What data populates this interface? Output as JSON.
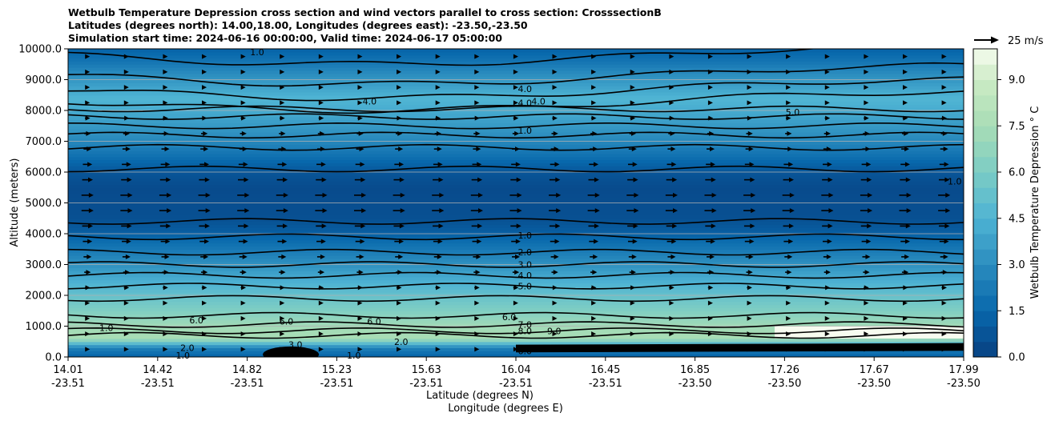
{
  "chart_data": {
    "type": "contour",
    "title_lines": [
      "Wetbulb Temperature Depression cross section and wind vectors parallel to cross section: CrosssectionB",
      "Latitudes (degrees north): 14.00,18.00, Longitudes (degrees east): -23.50,-23.50",
      "Simulation start time: 2024-06-16 00:00:00, Valid time: 2024-06-17 05:00:00"
    ],
    "ylabel": "Altitude (meters)",
    "xlabel_lines": [
      "Latitude (degrees N)",
      "Longitude (degrees E)"
    ],
    "ylim": [
      0,
      10000
    ],
    "yticks": [
      "0.0",
      "1000.0",
      "2000.0",
      "3000.0",
      "4000.0",
      "5000.0",
      "6000.0",
      "7000.0",
      "8000.0",
      "9000.0",
      "10000.0"
    ],
    "x_ticks": [
      {
        "lat": "14.01",
        "lon": "-23.51"
      },
      {
        "lat": "14.42",
        "lon": "-23.51"
      },
      {
        "lat": "14.82",
        "lon": "-23.51"
      },
      {
        "lat": "15.23",
        "lon": "-23.51"
      },
      {
        "lat": "15.63",
        "lon": "-23.51"
      },
      {
        "lat": "16.04",
        "lon": "-23.51"
      },
      {
        "lat": "16.45",
        "lon": "-23.51"
      },
      {
        "lat": "16.85",
        "lon": "-23.50"
      },
      {
        "lat": "17.26",
        "lon": "-23.50"
      },
      {
        "lat": "17.67",
        "lon": "-23.50"
      },
      {
        "lat": "17.99",
        "lon": "-23.50"
      }
    ],
    "colorbar": {
      "label": "Wetbulb Temperature Depression ° C",
      "range": [
        0,
        10
      ],
      "ticks": [
        "0.0",
        "1.5",
        "3.0",
        "4.5",
        "6.0",
        "7.5",
        "9.0"
      ]
    },
    "quiver_key": "25 m/s",
    "contour_labels": [
      {
        "text": "1.0",
        "alt": 9900,
        "lat": 14.85
      },
      {
        "text": "4.0",
        "alt": 8300,
        "lat": 15.35
      },
      {
        "text": "4.0",
        "alt": 8700,
        "lat": 16.04
      },
      {
        "text": "4.0",
        "alt": 8250,
        "lat": 16.04
      },
      {
        "text": "4.0",
        "alt": 8300,
        "lat": 16.1
      },
      {
        "text": "5.0",
        "alt": 7950,
        "lat": 17.23
      },
      {
        "text": "1.0",
        "alt": 7350,
        "lat": 16.04
      },
      {
        "text": "1.0",
        "alt": 5700,
        "lat": 17.95
      },
      {
        "text": "1.0",
        "alt": 3950,
        "lat": 16.04
      },
      {
        "text": "2.0",
        "alt": 3400,
        "lat": 16.04
      },
      {
        "text": "3.0",
        "alt": 3000,
        "lat": 16.04
      },
      {
        "text": "4.0",
        "alt": 2650,
        "lat": 16.04
      },
      {
        "text": "5.0",
        "alt": 2300,
        "lat": 16.04
      },
      {
        "text": "7.0",
        "alt": 1050,
        "lat": 16.04
      },
      {
        "text": "8.0",
        "alt": 850,
        "lat": 16.04
      },
      {
        "text": "9.0",
        "alt": 850,
        "lat": 16.17
      },
      {
        "text": "6.0",
        "alt": 1200,
        "lat": 14.58
      },
      {
        "text": "6.0",
        "alt": 1150,
        "lat": 14.98
      },
      {
        "text": "6.0",
        "alt": 1150,
        "lat": 15.37
      },
      {
        "text": "6.0",
        "alt": 1300,
        "lat": 15.97
      },
      {
        "text": "2.0",
        "alt": 300,
        "lat": 14.54
      },
      {
        "text": "3.0",
        "alt": 400,
        "lat": 15.02
      },
      {
        "text": "2.0",
        "alt": 500,
        "lat": 15.49
      },
      {
        "text": "1.0",
        "alt": 950,
        "lat": 14.18
      },
      {
        "text": "1.0",
        "alt": 50,
        "lat": 14.52
      },
      {
        "text": "1.0",
        "alt": 50,
        "lat": 15.28
      },
      {
        "text": "6.0",
        "alt": 200,
        "lat": 16.04
      }
    ]
  }
}
